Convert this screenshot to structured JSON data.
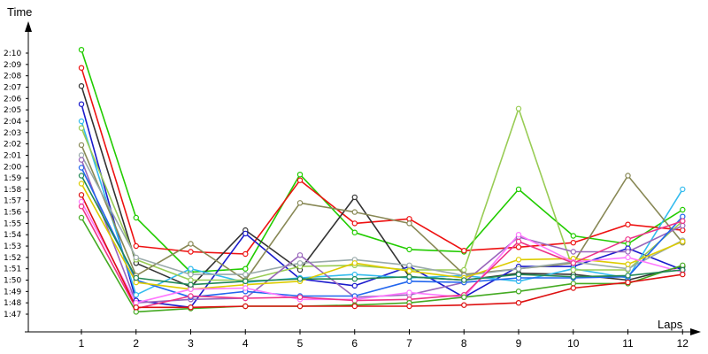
{
  "chart_data": {
    "type": "line",
    "ylabel": "Time",
    "xlabel": "Laps",
    "x": [
      1,
      2,
      3,
      4,
      5,
      6,
      7,
      8,
      9,
      10,
      11,
      12
    ],
    "xticks": [
      "1",
      "2",
      "3",
      "4",
      "5",
      "6",
      "7",
      "8",
      "9",
      "10",
      "11",
      "12"
    ],
    "yticks": [
      "1:47",
      "1:48",
      "1:49",
      "1:50",
      "1:51",
      "1:52",
      "1:53",
      "1:54",
      "1:55",
      "1:56",
      "1:57",
      "1:58",
      "1:59",
      "2:00",
      "2:01",
      "2:02",
      "2:03",
      "2:04",
      "2:05",
      "2:06",
      "2:07",
      "2:08",
      "2:09",
      "2:10"
    ],
    "yticks_seconds": [
      107,
      108,
      109,
      110,
      111,
      112,
      113,
      114,
      115,
      116,
      117,
      118,
      119,
      120,
      121,
      122,
      123,
      124,
      125,
      126,
      127,
      128,
      129,
      130
    ],
    "ylim_seconds": [
      105.8,
      131.8
    ],
    "grid": false,
    "series": [
      {
        "color": "#22cc00",
        "values": [
          130.3,
          115.5,
          110.7,
          111.0,
          119.3,
          114.2,
          112.7,
          112.5,
          118.0,
          113.9,
          113.2,
          116.2
        ]
      },
      {
        "color": "#ee1111",
        "values": [
          128.7,
          113.0,
          112.5,
          112.3,
          118.8,
          115.0,
          115.4,
          112.6,
          112.9,
          113.3,
          114.9,
          114.4
        ]
      },
      {
        "color": "#333333",
        "values": [
          127.1,
          111.5,
          109.4,
          114.4,
          110.9,
          117.3,
          110.3,
          110.0,
          110.6,
          110.5,
          110.0,
          111.2
        ]
      },
      {
        "color": "#1a1acc",
        "values": [
          125.5,
          108.2,
          107.6,
          114.1,
          110.1,
          109.5,
          111.2,
          108.5,
          111.2,
          111.2,
          112.8,
          110.9
        ]
      },
      {
        "color": "#33bbee",
        "values": [
          124.0,
          108.7,
          111.0,
          109.8,
          110.2,
          110.5,
          110.2,
          110.4,
          109.9,
          111.0,
          110.2,
          118.0
        ]
      },
      {
        "color": "#99cc55",
        "values": [
          123.4,
          111.8,
          110.0,
          110.0,
          111.2,
          111.3,
          110.9,
          110.9,
          125.1,
          110.9,
          110.9,
          115.2
        ]
      },
      {
        "color": "#888855",
        "values": [
          121.9,
          110.4,
          113.2,
          110.0,
          116.8,
          116.0,
          115.0,
          110.5,
          111.0,
          111.5,
          119.2,
          113.3
        ]
      },
      {
        "color": "#99aaaa",
        "values": [
          121.0,
          112.0,
          110.5,
          110.5,
          111.5,
          111.8,
          111.3,
          110.4,
          111.0,
          111.6,
          111.0,
          113.5
        ]
      },
      {
        "color": "#9966bb",
        "values": [
          120.6,
          108.0,
          108.3,
          108.4,
          112.2,
          108.5,
          108.7,
          109.8,
          113.8,
          112.5,
          112.5,
          114.8
        ]
      },
      {
        "color": "#2266ee",
        "values": [
          119.9,
          110.0,
          108.5,
          109.0,
          108.6,
          108.6,
          109.9,
          109.8,
          110.2,
          110.2,
          110.3,
          115.6
        ]
      },
      {
        "color": "#ddcc00",
        "values": [
          118.5,
          109.8,
          109.2,
          109.6,
          109.9,
          111.5,
          110.8,
          110.2,
          111.8,
          111.9,
          111.4,
          113.4
        ]
      },
      {
        "color": "#ff77ff",
        "values": [
          116.9,
          108.0,
          109.2,
          109.3,
          108.3,
          108.3,
          108.9,
          108.5,
          114.0,
          111.6,
          112.0,
          110.7
        ]
      },
      {
        "color": "#ee3388",
        "values": [
          116.5,
          107.5,
          108.6,
          108.4,
          108.5,
          108.2,
          108.3,
          108.7,
          113.4,
          111.5,
          113.6,
          115.2
        ]
      },
      {
        "color": "#44aa22",
        "values": [
          115.5,
          107.2,
          107.5,
          107.7,
          107.7,
          107.8,
          108.0,
          108.5,
          109.0,
          109.7,
          109.7,
          111.3
        ]
      },
      {
        "color": "#228855",
        "values": [
          119.2,
          110.2,
          109.6,
          109.9,
          110.1,
          110.1,
          110.3,
          110.0,
          110.5,
          110.3,
          110.4,
          110.9
        ]
      },
      {
        "color": "#dd1111",
        "values": [
          117.5,
          107.6,
          107.6,
          107.7,
          107.7,
          107.7,
          107.7,
          107.8,
          108.0,
          109.3,
          109.8,
          110.5
        ]
      }
    ]
  }
}
